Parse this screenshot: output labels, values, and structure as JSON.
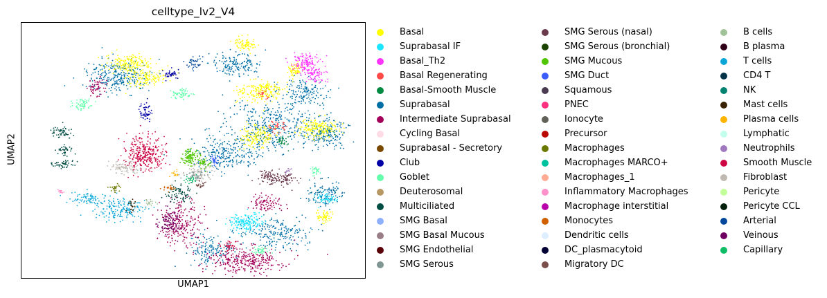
{
  "chart_data": {
    "type": "scatter",
    "title": "celltype_lv2_V4",
    "xlabel": "UMAP1",
    "ylabel": "UMAP2",
    "legend_position": "right",
    "grid": false,
    "series": [
      {
        "name": "Basal",
        "color": "#ffff00"
      },
      {
        "name": "Suprabasal IF",
        "color": "#1ce6ff"
      },
      {
        "name": "Basal_Th2",
        "color": "#ff34ff"
      },
      {
        "name": "Basal Regenerating",
        "color": "#ff4a46"
      },
      {
        "name": "Basal-Smooth Muscle",
        "color": "#008941"
      },
      {
        "name": "Suprabasal",
        "color": "#006fa6"
      },
      {
        "name": "Intermediate Suprabasal",
        "color": "#a30059"
      },
      {
        "name": "Cycling Basal",
        "color": "#ffdbe5"
      },
      {
        "name": "Suprabasal - Secretory",
        "color": "#7a4900"
      },
      {
        "name": "Club",
        "color": "#0000a6"
      },
      {
        "name": "Goblet",
        "color": "#63ffac"
      },
      {
        "name": "Deuterosomal",
        "color": "#b79762"
      },
      {
        "name": "Multiciliated",
        "color": "#004d43"
      },
      {
        "name": "SMG Basal",
        "color": "#8fb0ff"
      },
      {
        "name": "SMG Basal Mucous",
        "color": "#997d87"
      },
      {
        "name": "SMG Endothelial",
        "color": "#5a0007"
      },
      {
        "name": "SMG Serous",
        "color": "#809693"
      },
      {
        "name": "SMG Serous (nasal)",
        "color": "#6a3a4c"
      },
      {
        "name": "SMG Serous (bronchial)",
        "color": "#1b4400"
      },
      {
        "name": "SMG Mucous",
        "color": "#4fc601"
      },
      {
        "name": "SMG Duct",
        "color": "#3b5dff"
      },
      {
        "name": "Squamous",
        "color": "#4a3b53"
      },
      {
        "name": "PNEC",
        "color": "#ff2f80"
      },
      {
        "name": "Ionocyte",
        "color": "#61615a"
      },
      {
        "name": "Precursor",
        "color": "#ba0900"
      },
      {
        "name": "Macrophages",
        "color": "#6b7900"
      },
      {
        "name": "Macrophages MARCO+",
        "color": "#00c2a0"
      },
      {
        "name": "Macrophages_1",
        "color": "#ffaa92"
      },
      {
        "name": "Inflammatory Macrophages",
        "color": "#ff90c9"
      },
      {
        "name": "Macrophage interstitial",
        "color": "#b903aa"
      },
      {
        "name": "Monocytes",
        "color": "#d16100"
      },
      {
        "name": "Dendritic cells",
        "color": "#ddefff"
      },
      {
        "name": "DC_plasmacytoid",
        "color": "#000035"
      },
      {
        "name": "Migratory DC",
        "color": "#7b4f4b"
      },
      {
        "name": "B cells",
        "color": "#a1c299"
      },
      {
        "name": "B plasma",
        "color": "#300018"
      },
      {
        "name": "T cells",
        "color": "#0aa6d8"
      },
      {
        "name": "CD4 T",
        "color": "#013349"
      },
      {
        "name": "NK",
        "color": "#00846f"
      },
      {
        "name": "Mast cells",
        "color": "#372101"
      },
      {
        "name": "Plasma cells",
        "color": "#ffb500"
      },
      {
        "name": "Lymphatic",
        "color": "#c2ffed"
      },
      {
        "name": "Neutrophils",
        "color": "#a079bf"
      },
      {
        "name": "Smooth Muscle",
        "color": "#cc0744"
      },
      {
        "name": "Fibroblast",
        "color": "#c0b9b2"
      },
      {
        "name": "Pericyte",
        "color": "#c2ff99"
      },
      {
        "name": "Pericyte CCL",
        "color": "#001e09"
      },
      {
        "name": "Arterial",
        "color": "#00489c"
      },
      {
        "name": "Veinous",
        "color": "#6f0062"
      },
      {
        "name": "Capillary",
        "color": "#0cbd66"
      }
    ]
  }
}
